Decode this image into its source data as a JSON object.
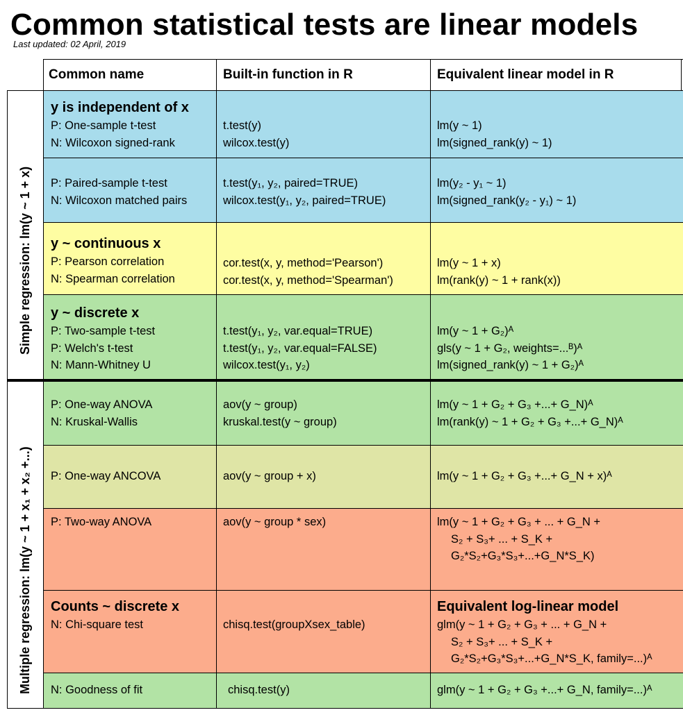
{
  "title": "Common statistical tests are linear models",
  "last_updated": "Last updated: 02 April, 2019",
  "headers": [
    "Common name",
    "Built-in function in R",
    "Equivalent linear model in R"
  ],
  "sections": {
    "simple": "Simple regression: lm(y ~ 1 + x)",
    "multiple": "Multiple regression: lm(y ~ 1 + x₁ + x₂ +...)"
  },
  "colors": {
    "blue": "#a8dcec",
    "yellow": "#fefda2",
    "green": "#b2e3a5",
    "olive": "#dfe5a6",
    "salmon": "#fcac8c"
  },
  "rows": [
    {
      "heading": "y is independent of x",
      "names": [
        "P: One-sample t-test",
        "N: Wilcoxon signed-rank"
      ],
      "functions": [
        "t.test(y)",
        "wilcox.test(y)"
      ],
      "models": [
        "lm(y ~ 1)",
        "lm(signed_rank(y) ~ 1)"
      ]
    },
    {
      "names": [
        "P: Paired-sample t-test",
        "N: Wilcoxon matched pairs"
      ],
      "functions": [
        "t.test(y₁, y₂, paired=TRUE)",
        "wilcox.test(y₁, y₂, paired=TRUE)"
      ],
      "models": [
        "lm(y₂ - y₁ ~ 1)",
        "lm(signed_rank(y₂ - y₁) ~ 1)"
      ]
    },
    {
      "heading": "y ~ continuous x",
      "names": [
        "P: Pearson correlation",
        "N: Spearman correlation"
      ],
      "functions": [
        "cor.test(x, y, method='Pearson')",
        "cor.test(x, y, method='Spearman')"
      ],
      "models": [
        "lm(y ~ 1 + x)",
        "lm(rank(y) ~ 1 + rank(x))"
      ]
    },
    {
      "heading": "y ~ discrete x",
      "names": [
        "P: Two-sample t-test",
        "P: Welch's t-test",
        "N: Mann-Whitney U"
      ],
      "functions": [
        "t.test(y₁, y₂, var.equal=TRUE)",
        "t.test(y₁, y₂, var.equal=FALSE)",
        "wilcox.test(y₁, y₂)"
      ],
      "models": [
        "lm(y ~ 1 + G₂)ᴬ",
        "gls(y ~ 1 + G₂, weights=...ᴮ)ᴬ",
        "lm(signed_rank(y) ~ 1 + G₂)ᴬ"
      ]
    },
    {
      "names": [
        "P: One-way ANOVA",
        "N: Kruskal-Wallis"
      ],
      "functions": [
        "aov(y ~ group)",
        "kruskal.test(y ~ group)"
      ],
      "models": [
        "lm(y ~ 1 + G₂ + G₃ +...+ G_N)ᴬ",
        "lm(rank(y) ~ 1 + G₂ + G₃ +...+ G_N)ᴬ"
      ]
    },
    {
      "names": [
        "P: One-way ANCOVA"
      ],
      "functions": [
        "aov(y ~ group + x)"
      ],
      "models": [
        "lm(y ~ 1 + G₂ + G₃ +...+ G_N + x)ᴬ"
      ]
    },
    {
      "names": [
        "P: Two-way ANOVA"
      ],
      "functions": [
        "aov(y ~ group * sex)"
      ],
      "models": [
        "lm(y ~ 1 + G₂ + G₃ + ... + G_N +",
        "S₂ + S₃+ ... + S_K +",
        "G₂*S₂+G₃*S₃+...+G_N*S_K)"
      ]
    },
    {
      "heading": "Counts ~ discrete x",
      "model_heading": "Equivalent log-linear model",
      "names": [
        "N: Chi-square test"
      ],
      "functions": [
        "chisq.test(groupXsex_table)"
      ],
      "models": [
        "glm(y ~ 1 + G₂ + G₃ + ... + G_N +",
        "S₂ + S₃+ ... + S_K +",
        "G₂*S₂+G₃*S₃+...+G_N*S_K, family=...)ᴬ"
      ]
    },
    {
      "names": [
        "N: Goodness of fit"
      ],
      "functions": [
        "chisq.test(y)"
      ],
      "models": [
        "glm(y ~ 1 + G₂ + G₃ +...+ G_N, family=...)ᴬ"
      ]
    }
  ]
}
